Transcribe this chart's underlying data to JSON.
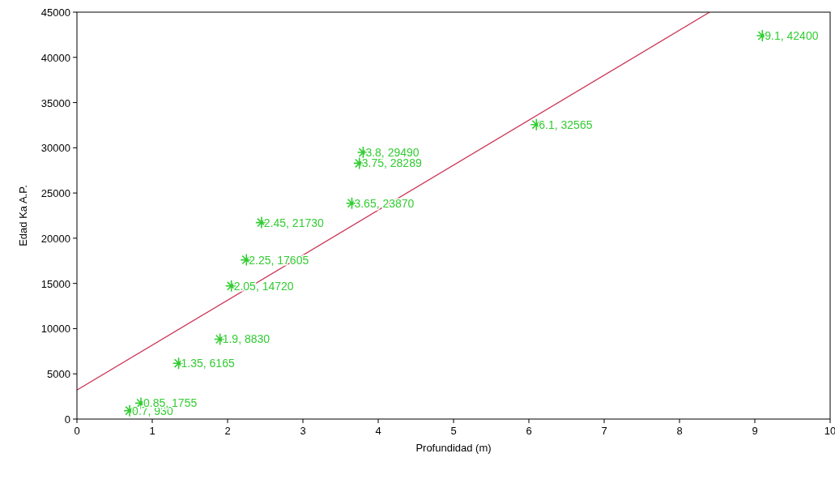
{
  "chart_data": {
    "type": "scatter",
    "xlabel": "Profundidad (m)",
    "ylabel": "Edad Ka A.P.",
    "xlim": [
      0,
      10
    ],
    "xticks": [
      0,
      1,
      2,
      3,
      4,
      5,
      6,
      7,
      8,
      9,
      10
    ],
    "ylim": [
      0,
      45000
    ],
    "yticks": [
      0,
      5000,
      10000,
      15000,
      20000,
      25000,
      30000,
      35000,
      40000,
      45000
    ],
    "grid": false,
    "series": [
      {
        "color": "#33cc33",
        "marker": "cross",
        "x": [
          0.7,
          0.85,
          1.35,
          1.9,
          2.05,
          2.25,
          2.45,
          3.65,
          3.75,
          3.8,
          6.1,
          9.1
        ],
        "values": [
          930,
          1755,
          6165,
          8830,
          14720,
          17605,
          21730,
          23870,
          28289,
          29490,
          32565,
          42400
        ],
        "value_labels": [
          "0.7, 930",
          "0.85, 1755",
          "1.35, 6165",
          "1.9, 8830",
          "2.05, 14720",
          "2.25, 17605",
          "2.45, 21730",
          "3.65, 23870",
          "3.75, 28289",
          "3.8, 29490",
          "6.1, 32565",
          "9.1, 42400"
        ]
      },
      {
        "type": "line",
        "color": "#cc3355",
        "x": [
          0,
          8.4
        ],
        "values": [
          3200,
          45000
        ]
      }
    ]
  }
}
